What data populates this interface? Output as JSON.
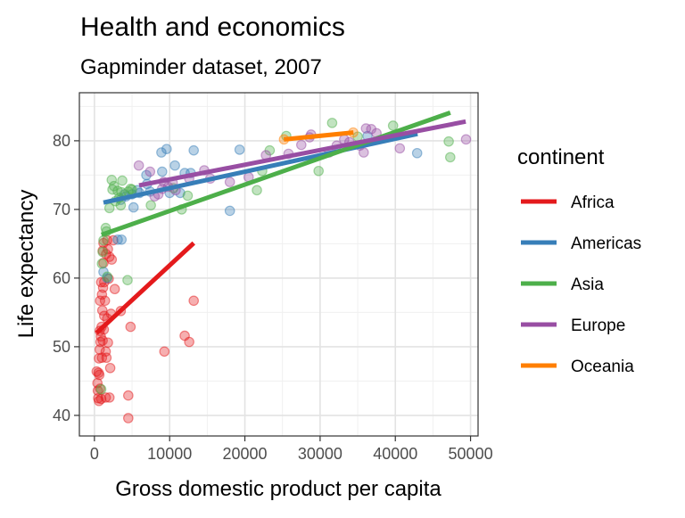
{
  "chart_data": {
    "type": "scatter",
    "title": "Health and economics",
    "subtitle": "Gapminder dataset, 2007",
    "xlabel": "Gross domestic product per capita",
    "ylabel": "Life expectancy",
    "xlim": [
      -2000,
      51000
    ],
    "ylim": [
      37,
      87
    ],
    "xticks": [
      0,
      10000,
      20000,
      30000,
      40000,
      50000
    ],
    "yticks": [
      40,
      50,
      60,
      70,
      80
    ],
    "grid": true,
    "legend": {
      "title": "continent",
      "position": "right"
    },
    "series": [
      {
        "name": "Africa",
        "color": "#e41a1c",
        "trend": {
          "x": [
            277,
            13206
          ],
          "y": [
            52.0,
            65.1
          ]
        },
        "points": [
          [
            300,
            46.4
          ],
          [
            400,
            44.7
          ],
          [
            450,
            43.6
          ],
          [
            500,
            42.5
          ],
          [
            550,
            46.2
          ],
          [
            600,
            48.3
          ],
          [
            600,
            42.1
          ],
          [
            650,
            45.9
          ],
          [
            700,
            49.6
          ],
          [
            700,
            52.3
          ],
          [
            750,
            43.9
          ],
          [
            750,
            56.7
          ],
          [
            800,
            50.7
          ],
          [
            850,
            51.5
          ],
          [
            900,
            59.4
          ],
          [
            900,
            42.4
          ],
          [
            950,
            52.9
          ],
          [
            1000,
            48.4
          ],
          [
            1000,
            57.6
          ],
          [
            1050,
            55.3
          ],
          [
            1100,
            50.9
          ],
          [
            1100,
            64.0
          ],
          [
            1150,
            58.6
          ],
          [
            1200,
            62.2
          ],
          [
            1200,
            65.1
          ],
          [
            1250,
            52.5
          ],
          [
            1300,
            54.5
          ],
          [
            1300,
            59.4
          ],
          [
            1400,
            56.7
          ],
          [
            1500,
            49.3
          ],
          [
            1500,
            42.6
          ],
          [
            1550,
            63.5
          ],
          [
            1600,
            48.4
          ],
          [
            1700,
            54.1
          ],
          [
            1700,
            65.5
          ],
          [
            1800,
            50.6
          ],
          [
            1800,
            64.2
          ],
          [
            1900,
            59.9
          ],
          [
            2000,
            63.1
          ],
          [
            2000,
            42.6
          ],
          [
            2100,
            46.9
          ],
          [
            2200,
            54.8
          ],
          [
            2300,
            62.7
          ],
          [
            2500,
            65.5
          ],
          [
            2700,
            58.4
          ],
          [
            3500,
            55.2
          ],
          [
            4500,
            42.9
          ],
          [
            4500,
            39.6
          ],
          [
            4800,
            52.9
          ],
          [
            9300,
            49.3
          ],
          [
            12000,
            51.6
          ],
          [
            12600,
            50.7
          ],
          [
            13200,
            56.7
          ]
        ]
      },
      {
        "name": "Americas",
        "color": "#377eb8",
        "trend": {
          "x": [
            1202,
            42952
          ],
          "y": [
            71.0,
            81.0
          ]
        },
        "points": [
          [
            1200,
            60.9
          ],
          [
            1700,
            60.0
          ],
          [
            3100,
            65.6
          ],
          [
            3500,
            71.4
          ],
          [
            3600,
            65.6
          ],
          [
            4000,
            72.2
          ],
          [
            4200,
            71.9
          ],
          [
            5000,
            72.2
          ],
          [
            5200,
            70.3
          ],
          [
            5700,
            72.8
          ],
          [
            6000,
            72.4
          ],
          [
            6900,
            75.0
          ],
          [
            7000,
            73.7
          ],
          [
            7400,
            72.6
          ],
          [
            8900,
            78.3
          ],
          [
            9000,
            75.5
          ],
          [
            9600,
            78.8
          ],
          [
            10000,
            72.4
          ],
          [
            10700,
            76.4
          ],
          [
            11400,
            72.4
          ],
          [
            12000,
            75.3
          ],
          [
            12800,
            75.3
          ],
          [
            13200,
            78.6
          ],
          [
            18000,
            69.8
          ],
          [
            19300,
            78.7
          ],
          [
            36300,
            80.7
          ],
          [
            42900,
            78.2
          ]
        ]
      },
      {
        "name": "Asia",
        "color": "#4daf4a",
        "trend": {
          "x": [
            944,
            47307
          ],
          "y": [
            66.3,
            84.1
          ]
        },
        "points": [
          [
            900,
            43.8
          ],
          [
            1000,
            62.1
          ],
          [
            1100,
            63.8
          ],
          [
            1200,
            65.5
          ],
          [
            1500,
            67.3
          ],
          [
            1600,
            66.8
          ],
          [
            1700,
            60.2
          ],
          [
            2000,
            70.2
          ],
          [
            2300,
            74.3
          ],
          [
            2400,
            72.9
          ],
          [
            2600,
            73.4
          ],
          [
            2800,
            71.2
          ],
          [
            3100,
            72.7
          ],
          [
            3300,
            71.7
          ],
          [
            3500,
            70.6
          ],
          [
            3600,
            72.5
          ],
          [
            3700,
            74.2
          ],
          [
            4400,
            59.7
          ],
          [
            4500,
            72.6
          ],
          [
            4800,
            73.0
          ],
          [
            5000,
            72.9
          ],
          [
            7500,
            70.6
          ],
          [
            10500,
            73.1
          ],
          [
            11600,
            70.0
          ],
          [
            12400,
            72.0
          ],
          [
            21600,
            72.8
          ],
          [
            22300,
            75.6
          ],
          [
            23300,
            78.6
          ],
          [
            25500,
            80.7
          ],
          [
            29800,
            75.6
          ],
          [
            31600,
            82.6
          ],
          [
            35000,
            80.6
          ],
          [
            39700,
            82.2
          ],
          [
            47100,
            79.9
          ],
          [
            47300,
            77.6
          ]
        ]
      },
      {
        "name": "Europe",
        "color": "#984ea3",
        "trend": {
          "x": [
            5937,
            49357
          ],
          "y": [
            73.5,
            82.8
          ]
        },
        "points": [
          [
            5900,
            76.4
          ],
          [
            7400,
            75.5
          ],
          [
            8000,
            71.9
          ],
          [
            8500,
            72.2
          ],
          [
            9000,
            73.0
          ],
          [
            9200,
            74.0
          ],
          [
            9800,
            73.3
          ],
          [
            10400,
            73.9
          ],
          [
            10800,
            72.8
          ],
          [
            12600,
            74.5
          ],
          [
            14600,
            75.7
          ],
          [
            15400,
            74.5
          ],
          [
            18000,
            74.0
          ],
          [
            20500,
            74.7
          ],
          [
            22800,
            77.9
          ],
          [
            25800,
            78.1
          ],
          [
            27500,
            79.4
          ],
          [
            28600,
            80.5
          ],
          [
            28800,
            80.9
          ],
          [
            31200,
            78.3
          ],
          [
            32200,
            79.3
          ],
          [
            33200,
            80.2
          ],
          [
            33900,
            79.8
          ],
          [
            35300,
            79.3
          ],
          [
            35800,
            78.3
          ],
          [
            36100,
            81.8
          ],
          [
            36800,
            81.7
          ],
          [
            37500,
            81.1
          ],
          [
            40600,
            78.9
          ],
          [
            49400,
            80.2
          ]
        ]
      },
      {
        "name": "Oceania",
        "color": "#ff7f00",
        "trend": {
          "x": [
            25185,
            34435
          ],
          "y": [
            80.2,
            81.2
          ]
        },
        "points": [
          [
            25200,
            80.2
          ],
          [
            34400,
            81.2
          ]
        ]
      }
    ]
  }
}
